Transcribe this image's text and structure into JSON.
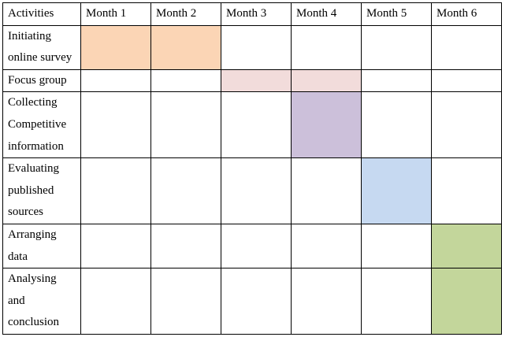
{
  "header": {
    "activities": "Activities",
    "months": [
      "Month 1",
      "Month 2",
      "Month 3",
      "Month 4",
      "Month 5",
      "Month 6"
    ]
  },
  "rows": [
    {
      "lines": [
        "Initiating",
        "online survey"
      ],
      "filled": [
        0,
        1
      ],
      "color": "#fbd5b5"
    },
    {
      "lines": [
        "Focus group"
      ],
      "filled": [
        2,
        3
      ],
      "color": "#f2dcdb"
    },
    {
      "lines": [
        "Collecting",
        "Competitive",
        "information"
      ],
      "filled": [
        3
      ],
      "color": "#ccc0da"
    },
    {
      "lines": [
        "Evaluating",
        "published",
        "sources"
      ],
      "filled": [
        4
      ],
      "color": "#c6d9f1"
    },
    {
      "lines": [
        "Arranging",
        "data"
      ],
      "filled": [
        5
      ],
      "color": "#c3d69b"
    },
    {
      "lines": [
        "Analysing",
        "and",
        "conclusion"
      ],
      "filled": [
        5
      ],
      "color": "#c3d69b"
    }
  ]
}
